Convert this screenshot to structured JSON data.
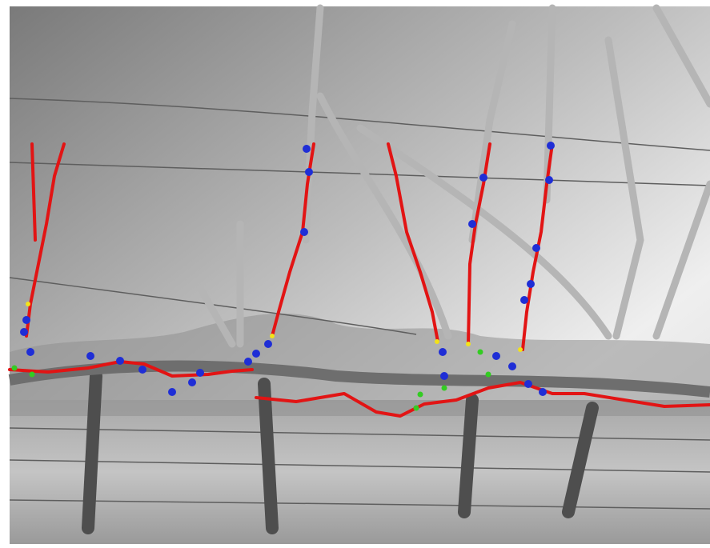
{
  "image": {
    "kind": "grayscale vineyard photograph with vine-segmentation overlay",
    "overlay_colors": {
      "cane": "#e21414",
      "node": "#1f2ed6",
      "bud": "#33cc22",
      "junction": "#f2e21a"
    }
  }
}
